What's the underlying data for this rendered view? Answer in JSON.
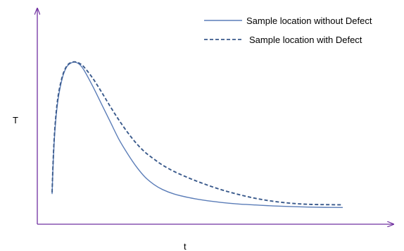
{
  "chart_data": {
    "type": "line",
    "title": "",
    "xlabel": "t",
    "ylabel": "T",
    "grid": false,
    "legend_position": "top-right",
    "xlim": [
      0,
      1
    ],
    "ylim": [
      0,
      1
    ],
    "axis_color": "#7030A0",
    "series": [
      {
        "name": "Sample location without Defect",
        "style": "solid",
        "color": "#5B7DB8",
        "points": [
          [
            0.0,
            0.1
          ],
          [
            0.004,
            0.3
          ],
          [
            0.01,
            0.5
          ],
          [
            0.02,
            0.68
          ],
          [
            0.035,
            0.82
          ],
          [
            0.05,
            0.89
          ],
          [
            0.065,
            0.915
          ],
          [
            0.08,
            0.92
          ],
          [
            0.095,
            0.905
          ],
          [
            0.11,
            0.87
          ],
          [
            0.14,
            0.77
          ],
          [
            0.17,
            0.66
          ],
          [
            0.2,
            0.55
          ],
          [
            0.23,
            0.44
          ],
          [
            0.26,
            0.35
          ],
          [
            0.29,
            0.27
          ],
          [
            0.32,
            0.205
          ],
          [
            0.35,
            0.16
          ],
          [
            0.38,
            0.128
          ],
          [
            0.42,
            0.1
          ],
          [
            0.47,
            0.078
          ],
          [
            0.52,
            0.062
          ],
          [
            0.58,
            0.048
          ],
          [
            0.64,
            0.038
          ],
          [
            0.7,
            0.032
          ],
          [
            0.76,
            0.026
          ],
          [
            0.82,
            0.022
          ],
          [
            0.88,
            0.019
          ],
          [
            0.94,
            0.017
          ],
          [
            1.0,
            0.016
          ]
        ]
      },
      {
        "name": "Sample location with Defect",
        "style": "dashed",
        "color": "#3A5A8C",
        "points": [
          [
            0.0,
            0.11
          ],
          [
            0.004,
            0.32
          ],
          [
            0.01,
            0.52
          ],
          [
            0.02,
            0.7
          ],
          [
            0.035,
            0.83
          ],
          [
            0.05,
            0.895
          ],
          [
            0.065,
            0.918
          ],
          [
            0.08,
            0.922
          ],
          [
            0.095,
            0.912
          ],
          [
            0.11,
            0.89
          ],
          [
            0.14,
            0.82
          ],
          [
            0.17,
            0.735
          ],
          [
            0.2,
            0.645
          ],
          [
            0.23,
            0.56
          ],
          [
            0.26,
            0.483
          ],
          [
            0.29,
            0.415
          ],
          [
            0.32,
            0.36
          ],
          [
            0.35,
            0.318
          ],
          [
            0.38,
            0.28
          ],
          [
            0.42,
            0.24
          ],
          [
            0.47,
            0.2
          ],
          [
            0.52,
            0.165
          ],
          [
            0.58,
            0.128
          ],
          [
            0.64,
            0.098
          ],
          [
            0.7,
            0.073
          ],
          [
            0.76,
            0.055
          ],
          [
            0.82,
            0.043
          ],
          [
            0.88,
            0.036
          ],
          [
            0.94,
            0.034
          ],
          [
            1.0,
            0.033
          ]
        ]
      }
    ]
  }
}
